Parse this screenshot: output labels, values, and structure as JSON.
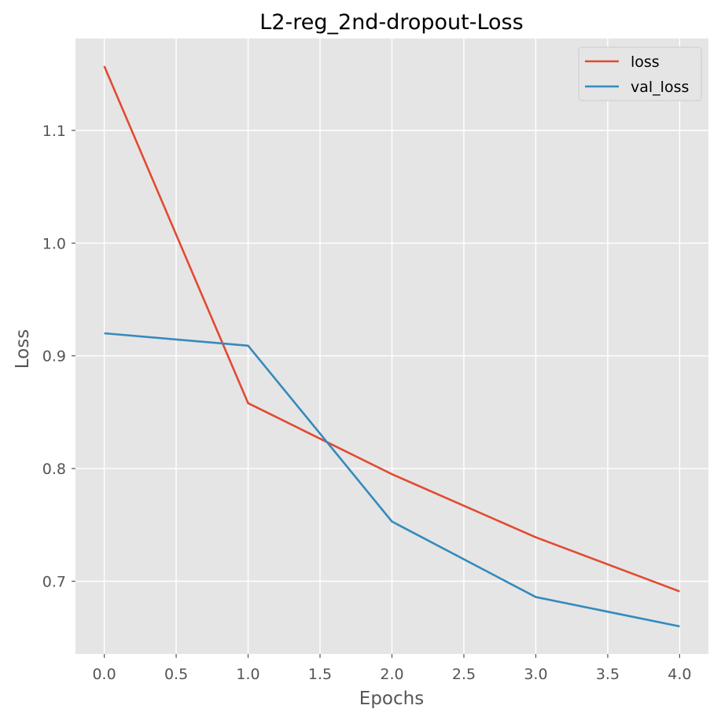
{
  "chart_data": {
    "type": "line",
    "title": "L2-reg_2nd-dropout-Loss",
    "xlabel": "Epochs",
    "ylabel": "Loss",
    "x": [
      0,
      1,
      2,
      3,
      4
    ],
    "series": [
      {
        "name": "loss",
        "color": "#E24A33",
        "values": [
          1.157,
          0.858,
          0.795,
          0.739,
          0.691
        ]
      },
      {
        "name": "val_loss",
        "color": "#348ABD",
        "values": [
          0.92,
          0.909,
          0.753,
          0.686,
          0.66
        ]
      }
    ],
    "xlim": [
      -0.2,
      4.2
    ],
    "ylim": [
      0.6355,
      1.1815
    ],
    "xticks": [
      0.0,
      0.5,
      1.0,
      1.5,
      2.0,
      2.5,
      3.0,
      3.5,
      4.0
    ],
    "xtick_labels": [
      "0.0",
      "0.5",
      "1.0",
      "1.5",
      "2.0",
      "2.5",
      "3.0",
      "3.5",
      "4.0"
    ],
    "yticks": [
      0.7,
      0.8,
      0.9,
      1.0,
      1.1
    ],
    "ytick_labels": [
      "0.7",
      "0.8",
      "0.9",
      "1.0",
      "1.1"
    ],
    "grid": true,
    "legend_position": "top-right",
    "plot_background": "#E5E5E5"
  }
}
